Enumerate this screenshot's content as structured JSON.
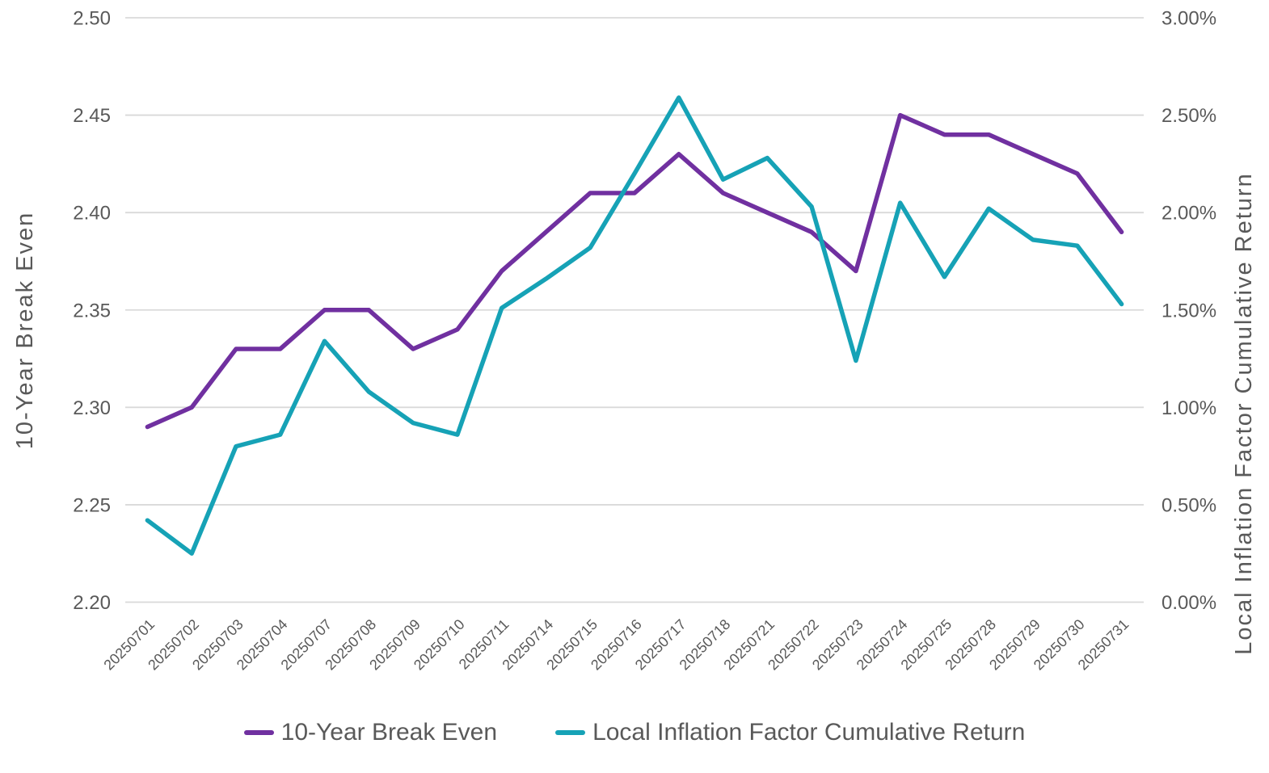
{
  "page": {
    "background": "#FFFFFF",
    "text_color": "#595959",
    "grid_color": "#D9D9D9"
  },
  "chart_data": {
    "type": "line",
    "title": "",
    "grid": true,
    "legend_position": "bottom",
    "categories": [
      "20250701",
      "20250702",
      "20250703",
      "20250704",
      "20250707",
      "20250708",
      "20250709",
      "20250710",
      "20250711",
      "20250714",
      "20250715",
      "20250716",
      "20250717",
      "20250718",
      "20250721",
      "20250722",
      "20250723",
      "20250724",
      "20250725",
      "20250728",
      "20250729",
      "20250730",
      "20250731"
    ],
    "series": [
      {
        "name": "10-Year Break Even",
        "axis": "left",
        "color": "#7030A0",
        "values": [
          2.29,
          2.3,
          2.33,
          2.33,
          2.35,
          2.35,
          2.33,
          2.34,
          2.37,
          2.39,
          2.41,
          2.41,
          2.43,
          2.41,
          2.4,
          2.39,
          2.37,
          2.45,
          2.44,
          2.44,
          2.43,
          2.42,
          2.39
        ]
      },
      {
        "name": "Local Inflation Factor Cumulative Return",
        "axis": "right",
        "color": "#16A2B6",
        "unit": "%",
        "values": [
          0.42,
          0.25,
          0.8,
          0.86,
          1.34,
          1.08,
          0.92,
          0.86,
          1.51,
          1.66,
          1.82,
          2.2,
          2.59,
          2.17,
          2.28,
          2.03,
          1.24,
          2.05,
          1.67,
          2.02,
          1.86,
          1.83,
          1.53
        ]
      }
    ],
    "left_axis": {
      "title": "10-Year Break Even",
      "min": 2.2,
      "max": 2.5,
      "step": 0.05,
      "tick_labels": [
        "2.50",
        "2.45",
        "2.40",
        "2.35",
        "2.30",
        "2.25",
        "2.20"
      ]
    },
    "right_axis": {
      "title": "Local Inflation Factor Cumulative Return",
      "min": 0.0,
      "max": 3.0,
      "step": 0.5,
      "tick_labels": [
        "3.00%",
        "2.50%",
        "2.00%",
        "1.50%",
        "1.00%",
        "0.50%",
        "0.00%"
      ]
    },
    "x_axis": {
      "tick_rotation_deg": -45
    }
  }
}
